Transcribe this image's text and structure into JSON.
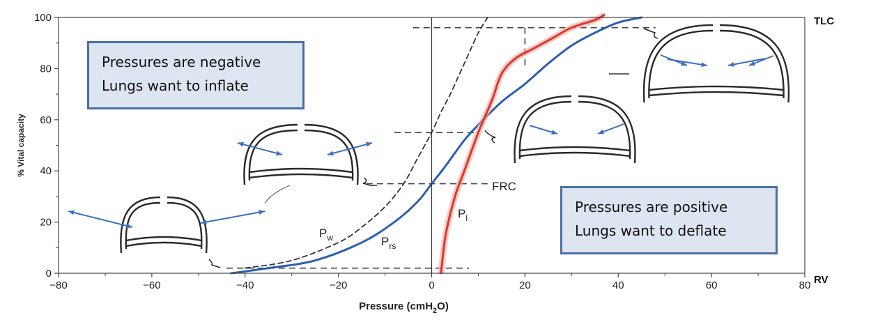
{
  "chart_data": {
    "type": "line",
    "xlabel": "Pressure (cmH",
    "xlabel_sub": "2",
    "xlabel_end": "O)",
    "ylabel": "% Vital capacity",
    "xlim": [
      -80,
      80
    ],
    "ylim": [
      0,
      100
    ],
    "x_ticks": [
      -80,
      -60,
      -40,
      -20,
      0,
      20,
      40,
      60,
      80
    ],
    "y_ticks": [
      0,
      20,
      40,
      60,
      80,
      100
    ],
    "x_tick_labels": [
      "−80",
      "−60",
      "−40",
      "−20",
      "0",
      "20",
      "40",
      "60",
      "80"
    ],
    "y_tick_labels": [
      "0",
      "20",
      "40",
      "60",
      "80",
      "100"
    ],
    "grid": false,
    "right_labels": {
      "top": "TLC",
      "bottom": "RV"
    },
    "series": [
      {
        "name": "P",
        "sub": "rs",
        "color": "#2b5fb4",
        "style": "solid",
        "points": [
          [
            -43,
            0
          ],
          [
            -35,
            2
          ],
          [
            -25,
            5
          ],
          [
            -15,
            12
          ],
          [
            -8,
            20
          ],
          [
            -3,
            28
          ],
          [
            0,
            35
          ],
          [
            3,
            42
          ],
          [
            7,
            52
          ],
          [
            10,
            58
          ],
          [
            15,
            67
          ],
          [
            20,
            74
          ],
          [
            25,
            82
          ],
          [
            30,
            89
          ],
          [
            35,
            94
          ],
          [
            40,
            98
          ],
          [
            45,
            100
          ]
        ]
      },
      {
        "name": "P",
        "sub": "w",
        "color": "#333333",
        "style": "dashed",
        "points": [
          [
            -40,
            2
          ],
          [
            -30,
            5
          ],
          [
            -20,
            12
          ],
          [
            -15,
            18
          ],
          [
            -10,
            26
          ],
          [
            -6,
            35
          ],
          [
            -3,
            45
          ],
          [
            0,
            55
          ],
          [
            2,
            63
          ],
          [
            4,
            70
          ],
          [
            6,
            78
          ],
          [
            8,
            86
          ],
          [
            10,
            94
          ],
          [
            12,
            100
          ]
        ]
      },
      {
        "name": "P",
        "sub": "l",
        "color": "#d93a2e",
        "style": "solid",
        "points": [
          [
            2,
            0
          ],
          [
            3,
            15
          ],
          [
            5,
            30
          ],
          [
            7,
            40
          ],
          [
            10,
            55
          ],
          [
            13,
            68
          ],
          [
            15,
            78
          ],
          [
            18,
            84
          ],
          [
            22,
            88
          ],
          [
            26,
            92
          ],
          [
            30,
            96
          ],
          [
            35,
            99
          ],
          [
            37,
            101
          ]
        ]
      }
    ],
    "annotations": [
      {
        "text": "FRC"
      }
    ],
    "callouts": [
      {
        "line1": "Pressures are negative",
        "line2": "Lungs want to inflate"
      },
      {
        "line1": "Pressures are positive",
        "line2": "Lungs want to deflate"
      }
    ]
  }
}
